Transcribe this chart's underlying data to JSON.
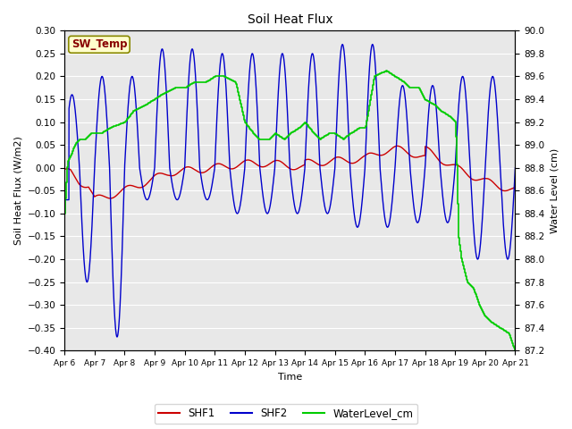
{
  "title": "Soil Heat Flux",
  "ylabel_left": "Soil Heat Flux (W/m2)",
  "ylabel_right": "Water Level (cm)",
  "xlabel": "Time",
  "ylim_left": [
    -0.4,
    0.3
  ],
  "ylim_right": [
    87.2,
    90.0
  ],
  "yticks_left": [
    -0.4,
    -0.35,
    -0.3,
    -0.25,
    -0.2,
    -0.15,
    -0.1,
    -0.05,
    0.0,
    0.05,
    0.1,
    0.15,
    0.2,
    0.25,
    0.3
  ],
  "yticks_right": [
    87.2,
    87.4,
    87.6,
    87.8,
    88.0,
    88.2,
    88.4,
    88.6,
    88.8,
    89.0,
    89.2,
    89.4,
    89.6,
    89.8,
    90.0
  ],
  "xtick_labels": [
    "Apr 6",
    "Apr 7",
    "Apr 8",
    "Apr 9",
    "Apr 10",
    "Apr 11",
    "Apr 12",
    "Apr 13",
    "Apr 14",
    "Apr 15",
    "Apr 16",
    "Apr 17",
    "Apr 18",
    "Apr 19",
    "Apr 20",
    "Apr 21"
  ],
  "color_shf1": "#cc0000",
  "color_shf2": "#0000cc",
  "color_wl": "#00cc00",
  "bg_color": "#e8e8e8",
  "sw_temp_label": "SW_Temp",
  "sw_temp_bg": "#ffffcc",
  "sw_temp_fg": "#880000",
  "legend_labels": [
    "SHF1",
    "SHF2",
    "WaterLevel_cm"
  ]
}
